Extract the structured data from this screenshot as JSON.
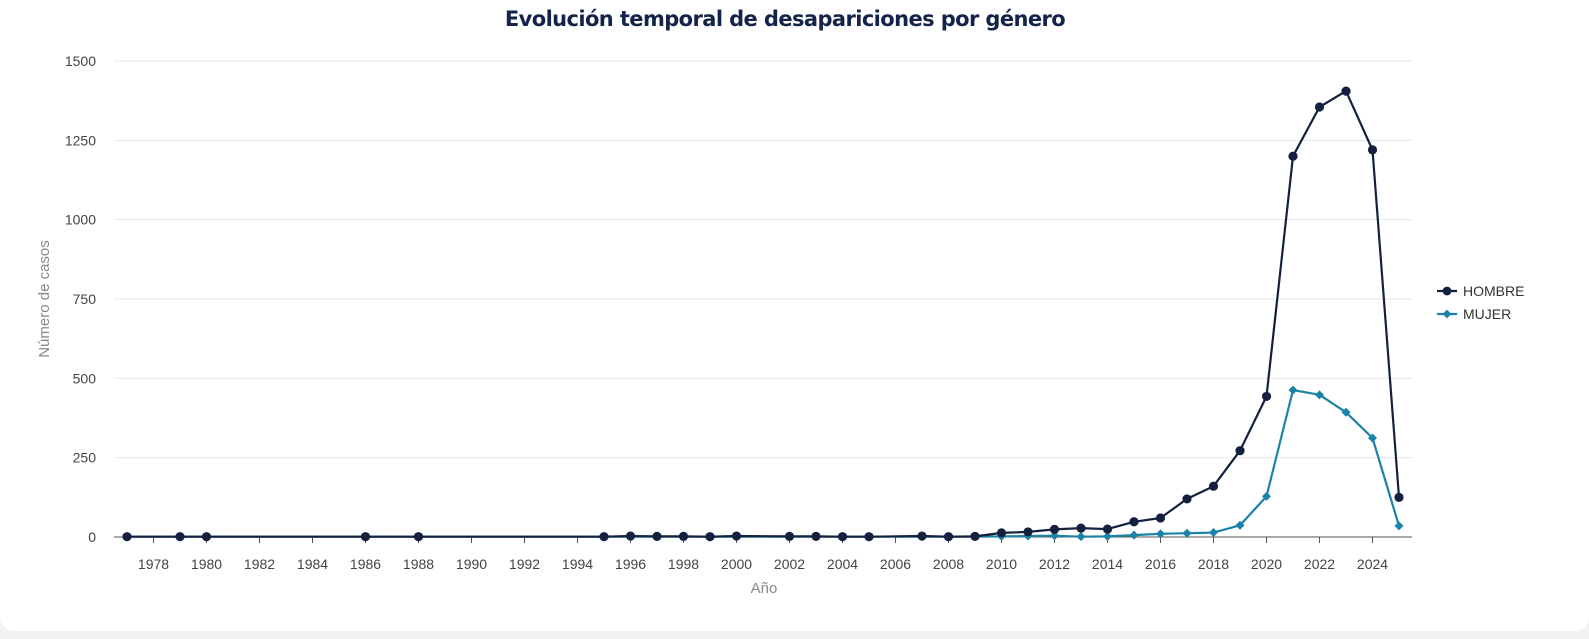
{
  "chart_data": {
    "type": "line",
    "title": "Evolución temporal de desapariciones por género",
    "xlabel": "Año",
    "ylabel": "Número de casos",
    "ylim": [
      0,
      1500
    ],
    "xlim": [
      1977,
      2025
    ],
    "yticks": [
      0,
      250,
      500,
      750,
      1000,
      1250,
      1500
    ],
    "ytick_labels": [
      "0",
      "250",
      "500",
      "750",
      "1000",
      "1250",
      "1500"
    ],
    "xticks": [
      1978,
      1980,
      1982,
      1984,
      1986,
      1988,
      1990,
      1992,
      1994,
      1996,
      1998,
      2000,
      2002,
      2004,
      2006,
      2008,
      2010,
      2012,
      2014,
      2016,
      2018,
      2020,
      2022,
      2024
    ],
    "xtick_labels": [
      "1978",
      "1980",
      "1982",
      "1984",
      "1986",
      "1988",
      "1990",
      "1992",
      "1994",
      "1996",
      "1998",
      "2000",
      "2002",
      "2004",
      "2006",
      "2008",
      "2010",
      "2012",
      "2014",
      "2016",
      "2018",
      "2020",
      "2022",
      "2024"
    ],
    "legend_position": "right",
    "grid": true,
    "series": [
      {
        "name": "HOMBRE",
        "color": "#13213f",
        "marker": "circle",
        "x": [
          1977,
          1979,
          1980,
          1986,
          1988,
          1995,
          1996,
          1997,
          1998,
          1999,
          2000,
          2002,
          2003,
          2004,
          2005,
          2007,
          2008,
          2009,
          2010,
          2011,
          2012,
          2013,
          2014,
          2015,
          2016,
          2017,
          2018,
          2019,
          2020,
          2021,
          2022,
          2023,
          2024,
          2025
        ],
        "values": [
          1,
          1,
          1,
          1,
          1,
          1,
          3,
          2,
          2,
          1,
          3,
          2,
          2,
          1,
          1,
          3,
          1,
          2,
          13,
          16,
          24,
          28,
          25,
          48,
          60,
          120,
          160,
          272,
          443,
          1200,
          1355,
          1405,
          1220,
          125
        ]
      },
      {
        "name": "MUJER",
        "color": "#1b82a8",
        "marker": "diamond",
        "x": [
          1977,
          1979,
          1980,
          1986,
          1988,
          1995,
          1996,
          1997,
          1998,
          1999,
          2000,
          2002,
          2003,
          2004,
          2005,
          2007,
          2008,
          2009,
          2010,
          2011,
          2012,
          2013,
          2014,
          2015,
          2016,
          2017,
          2018,
          2019,
          2020,
          2021,
          2022,
          2023,
          2024,
          2025
        ],
        "values": [
          1,
          1,
          1,
          1,
          1,
          1,
          1,
          1,
          1,
          1,
          1,
          1,
          1,
          1,
          1,
          1,
          1,
          1,
          2,
          3,
          4,
          1,
          2,
          6,
          10,
          12,
          14,
          37,
          128,
          463,
          448,
          393,
          312,
          35
        ]
      }
    ]
  }
}
